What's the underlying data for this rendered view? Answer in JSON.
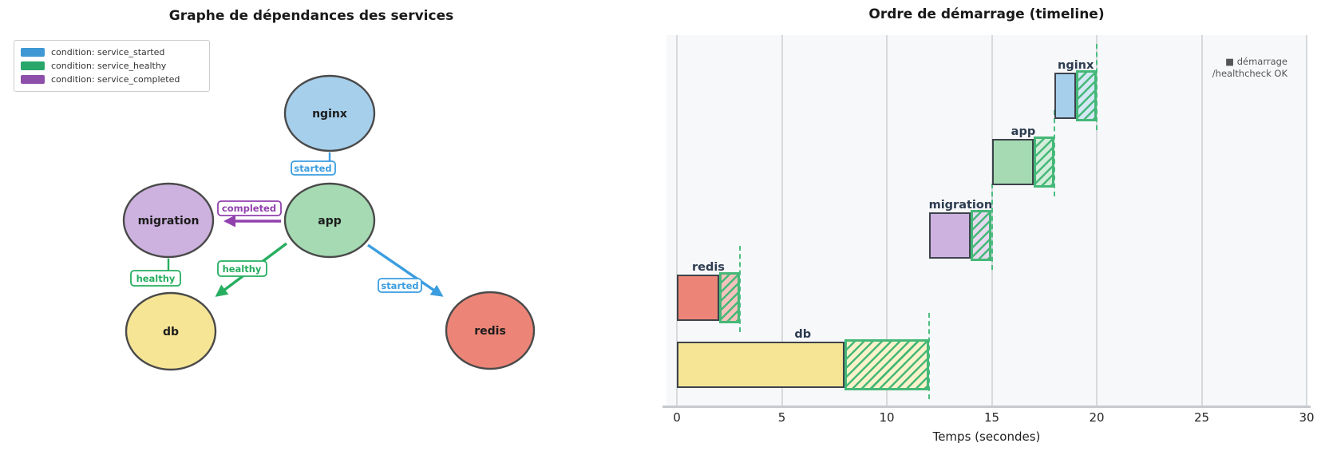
{
  "dependency_graph": {
    "title": "Graphe de dépendances des services",
    "legend": {
      "items": [
        {
          "label": "condition: service_started",
          "color": "#3f97d3"
        },
        {
          "label": "condition: service_healthy",
          "color": "#29a66a"
        },
        {
          "label": "condition: service_completed",
          "color": "#8d4fa9"
        }
      ]
    },
    "nodes": [
      {
        "id": "nginx",
        "label": "nginx",
        "fill": "#a6cfeb"
      },
      {
        "id": "app",
        "label": "app",
        "fill": "#a5dab3"
      },
      {
        "id": "migration",
        "label": "migration",
        "fill": "#cdb2df"
      },
      {
        "id": "db",
        "label": "db",
        "fill": "#f6e595"
      },
      {
        "id": "redis",
        "label": "redis",
        "fill": "#ec8577"
      }
    ],
    "edges": [
      {
        "from": "nginx",
        "to": "app",
        "condition": "started",
        "color": "#3b9de0"
      },
      {
        "from": "app",
        "to": "migration",
        "condition": "completed",
        "color": "#9141ad"
      },
      {
        "from": "migration",
        "to": "db",
        "condition": "healthy",
        "color": "#27ae60"
      },
      {
        "from": "app",
        "to": "db",
        "condition": "healthy",
        "color": "#27ae60"
      },
      {
        "from": "app",
        "to": "redis",
        "condition": "started",
        "color": "#3b9de0"
      }
    ]
  },
  "chart_data": {
    "type": "bar",
    "orientation": "horizontal",
    "title": "Ordre de démarrage (timeline)",
    "xlabel": "Temps (secondes)",
    "xlim": [
      0,
      30
    ],
    "xticks": [
      0,
      5,
      10,
      15,
      20,
      25,
      30
    ],
    "grid": true,
    "legend": [
      "■ démarrage",
      "/healthcheck OK"
    ],
    "bars": [
      {
        "name": "nginx",
        "start": 18,
        "started_until": 19,
        "healthy_at": 20,
        "color": "#a6cfeb"
      },
      {
        "name": "app",
        "start": 15,
        "started_until": 17,
        "healthy_at": 18,
        "color": "#a5dab3"
      },
      {
        "name": "migration",
        "start": 12,
        "started_until": 14,
        "healthy_at": 15,
        "color": "#cdb2df"
      },
      {
        "name": "redis",
        "start": 0,
        "started_until": 2,
        "healthy_at": 3,
        "color": "#ec8577"
      },
      {
        "name": "db",
        "start": 0,
        "started_until": 8,
        "healthy_at": 12,
        "color": "#f6e595"
      }
    ],
    "hatch_color": "#45b878",
    "deadline_color": "#4dbd80"
  }
}
